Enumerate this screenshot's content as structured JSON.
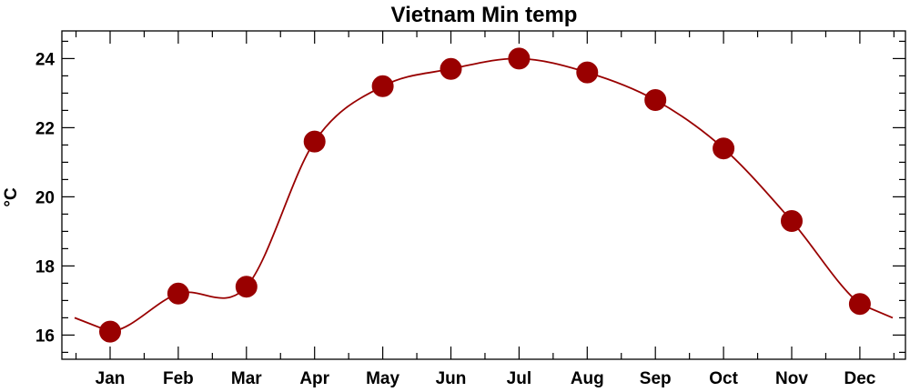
{
  "chart_data": {
    "type": "line",
    "title": "Vietnam Min temp",
    "xlabel": "",
    "ylabel": "°C",
    "categories": [
      "Jan",
      "Feb",
      "Mar",
      "Apr",
      "May",
      "Jun",
      "Jul",
      "Aug",
      "Sep",
      "Oct",
      "Nov",
      "Dec"
    ],
    "series": [
      {
        "values": [
          16.1,
          17.2,
          17.4,
          21.6,
          23.2,
          23.7,
          24.0,
          23.6,
          22.8,
          21.4,
          19.3,
          16.9
        ]
      }
    ],
    "ylim": [
      15.3,
      24.8
    ],
    "yticks": [
      "16",
      "18",
      "20",
      "22",
      "24"
    ],
    "grid": false,
    "legend": "none",
    "line_color": "#990000",
    "marker_color": "#990000"
  }
}
